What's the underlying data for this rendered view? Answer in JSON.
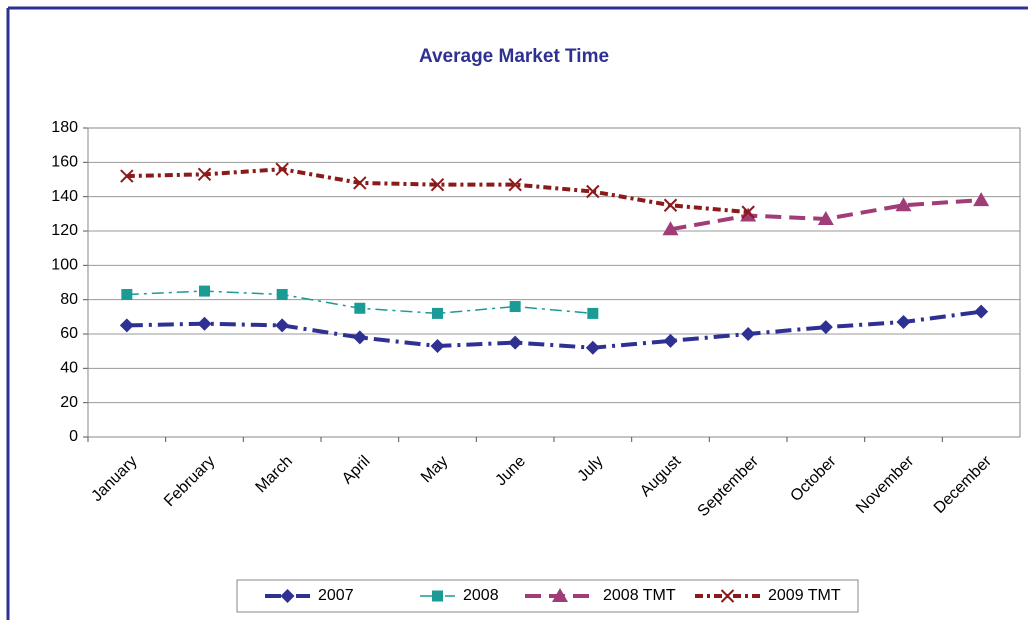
{
  "chart_data": {
    "type": "line",
    "title": "Average Market Time",
    "categories": [
      "January",
      "February",
      "March",
      "April",
      "May",
      "June",
      "July",
      "August",
      "September",
      "October",
      "November",
      "December"
    ],
    "series": [
      {
        "name": "2007",
        "color": "#2e3192",
        "values": [
          65,
          66,
          65,
          58,
          53,
          55,
          52,
          56,
          60,
          64,
          67,
          73
        ]
      },
      {
        "name": "2008",
        "color": "#1a9b96",
        "values": [
          83,
          85,
          83,
          75,
          72,
          76,
          72,
          null,
          null,
          null,
          null,
          null
        ]
      },
      {
        "name": "2008 TMT",
        "color": "#a03c78",
        "values": [
          null,
          null,
          null,
          null,
          null,
          null,
          null,
          121,
          129,
          127,
          135,
          138
        ]
      },
      {
        "name": "2009 TMT",
        "color": "#8b1a1a",
        "values": [
          152,
          153,
          156,
          148,
          147,
          147,
          143,
          135,
          131,
          null,
          null,
          null
        ]
      }
    ],
    "ylim": [
      0,
      180
    ],
    "yticks": [
      0,
      20,
      40,
      60,
      80,
      100,
      120,
      140,
      160,
      180
    ],
    "grid": true
  }
}
